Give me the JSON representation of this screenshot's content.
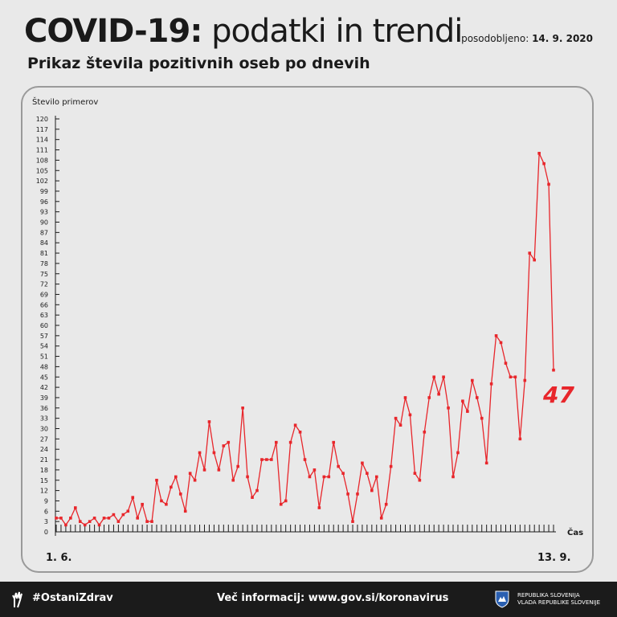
{
  "header": {
    "title_bold": "COVID-19:",
    "title_light": "podatki in trendi",
    "updated_label": "posodobljeno:",
    "updated_date": "14. 9. 2020",
    "subtitle": "Prikaz števila pozitivnih oseb po dnevih"
  },
  "chart_data": {
    "type": "line",
    "title": "Prikaz števila pozitivnih oseb po dnevih",
    "ylabel": "Število primerov",
    "xlabel": "Čas",
    "ylim": [
      0,
      120
    ],
    "yticks": [
      0,
      3,
      6,
      9,
      12,
      15,
      18,
      21,
      24,
      27,
      30,
      33,
      36,
      39,
      42,
      45,
      48,
      51,
      54,
      57,
      60,
      63,
      66,
      69,
      72,
      75,
      78,
      81,
      84,
      87,
      90,
      93,
      96,
      99,
      102,
      105,
      108,
      111,
      114,
      117,
      120
    ],
    "x_start_label": "1. 6.",
    "x_end_label": "13. 9.",
    "last_value_label": "47",
    "grid": false,
    "series": [
      {
        "color": "#e8262b",
        "values": [
          4,
          4,
          2,
          4,
          7,
          3,
          2,
          3,
          4,
          2,
          4,
          4,
          5,
          3,
          5,
          6,
          10,
          4,
          8,
          3,
          3,
          15,
          9,
          8,
          13,
          16,
          11,
          6,
          17,
          15,
          23,
          18,
          32,
          23,
          18,
          25,
          26,
          15,
          19,
          36,
          16,
          10,
          12,
          21,
          21,
          21,
          26,
          8,
          9,
          26,
          31,
          29,
          21,
          16,
          18,
          7,
          16,
          16,
          26,
          19,
          17,
          11,
          3,
          11,
          20,
          17,
          12,
          16,
          4,
          8,
          19,
          33,
          31,
          39,
          34,
          17,
          15,
          29,
          39,
          45,
          40,
          45,
          36,
          16,
          23,
          38,
          35,
          44,
          39,
          33,
          20,
          43,
          57,
          55,
          49,
          45,
          45,
          27,
          44,
          81,
          79,
          110,
          107,
          101,
          47
        ]
      }
    ]
  },
  "footer": {
    "hashtag": "#OstaniZdrav",
    "info": "Več informacij: www.gov.si/koronavirus",
    "gov_line1": "REPUBLIKA SLOVENIJA",
    "gov_line2": "VLADA REPUBLIKE SLOVENIJE"
  }
}
